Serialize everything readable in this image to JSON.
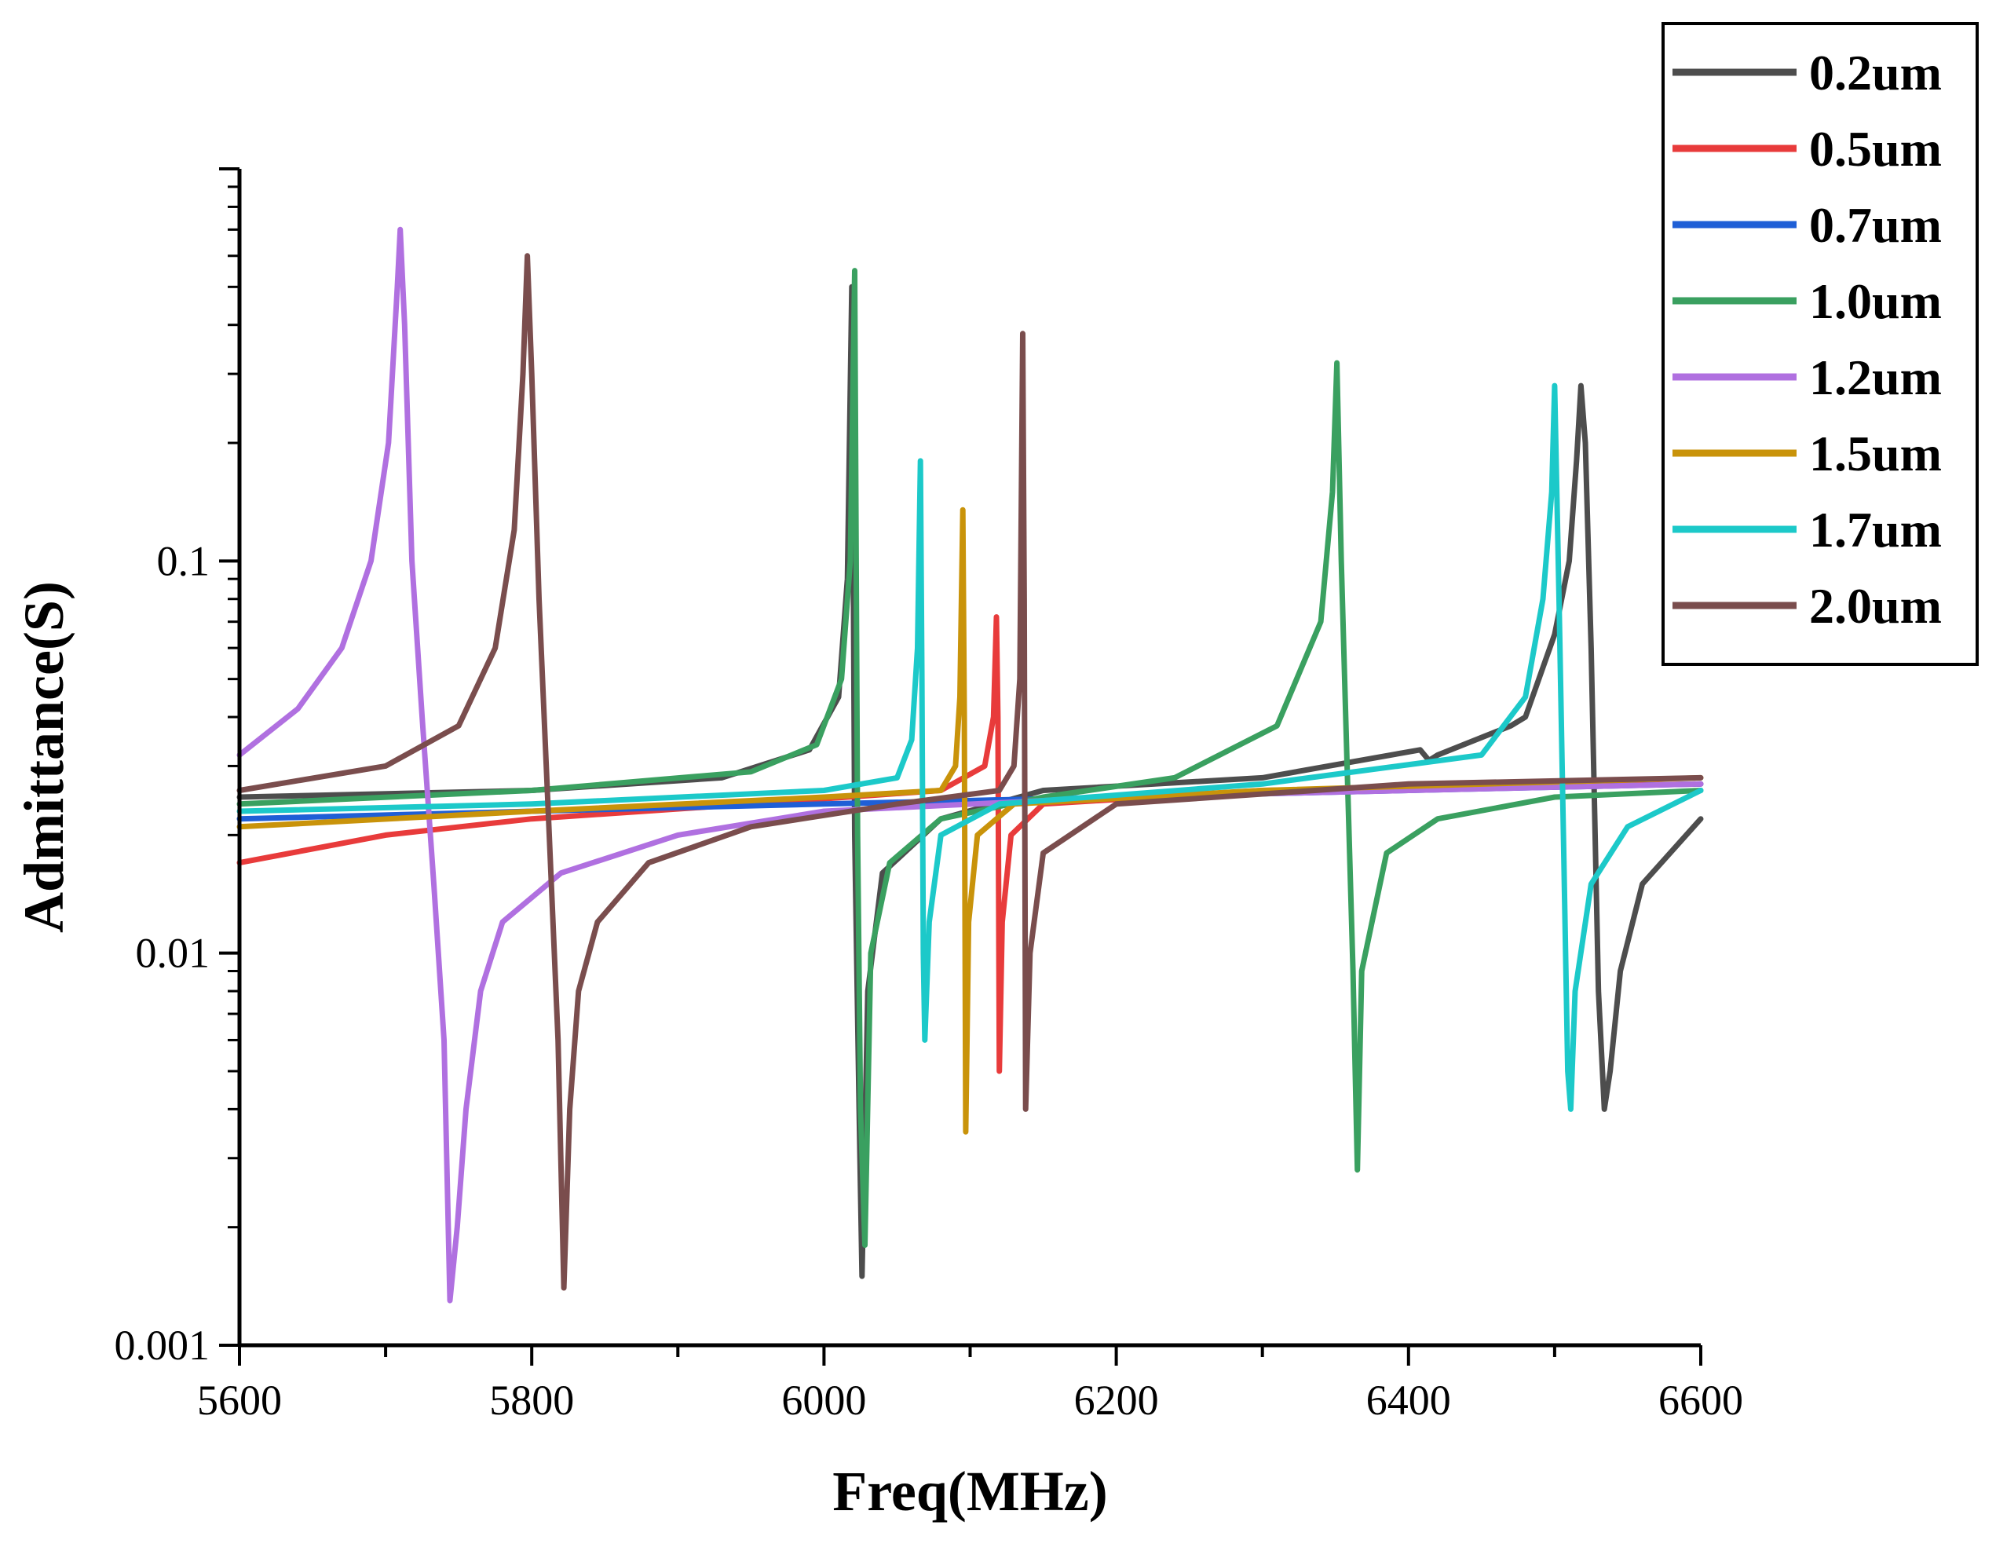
{
  "chart_data": {
    "type": "line",
    "title": "",
    "xlabel": "Freq(MHz)",
    "ylabel": "Admittance(S)",
    "xlim": [
      5600,
      6600
    ],
    "ylim": [
      0.001,
      1.0
    ],
    "yscale": "log",
    "x_ticks": [
      5600,
      5800,
      6000,
      6200,
      6400,
      6600
    ],
    "x_tick_labels": [
      "5600",
      "5800",
      "6000",
      "6200",
      "6400",
      "6600"
    ],
    "y_ticks": [
      0.001,
      0.01,
      0.1
    ],
    "y_tick_labels": [
      "0.001",
      "0.01",
      "0.1"
    ],
    "legend_position": "top-right",
    "series": [
      {
        "name": "0.2um",
        "color": "#4d4d4d",
        "points": [
          [
            5600,
            0.025
          ],
          [
            5800,
            0.026
          ],
          [
            5930,
            0.028
          ],
          [
            5990,
            0.033
          ],
          [
            6010,
            0.045
          ],
          [
            6016,
            0.09
          ],
          [
            6019,
            0.5
          ],
          [
            6021,
            0.02
          ],
          [
            6024,
            0.004
          ],
          [
            6026,
            0.0015
          ],
          [
            6030,
            0.008
          ],
          [
            6040,
            0.016
          ],
          [
            6080,
            0.022
          ],
          [
            6150,
            0.026
          ],
          [
            6300,
            0.028
          ],
          [
            6408,
            0.033
          ],
          [
            6414,
            0.031
          ],
          [
            6420,
            0.032
          ],
          [
            6470,
            0.038
          ],
          [
            6480,
            0.04
          ],
          [
            6500,
            0.065
          ],
          [
            6510,
            0.1
          ],
          [
            6515,
            0.18
          ],
          [
            6518,
            0.28
          ],
          [
            6521,
            0.2
          ],
          [
            6525,
            0.06
          ],
          [
            6530,
            0.008
          ],
          [
            6534,
            0.004
          ],
          [
            6538,
            0.005
          ],
          [
            6545,
            0.009
          ],
          [
            6560,
            0.015
          ],
          [
            6600,
            0.022
          ]
        ]
      },
      {
        "name": "0.5um",
        "color": "#e83b3b",
        "points": [
          [
            5600,
            0.017
          ],
          [
            5700,
            0.02
          ],
          [
            5800,
            0.022
          ],
          [
            5950,
            0.024
          ],
          [
            6080,
            0.026
          ],
          [
            6110,
            0.03
          ],
          [
            6116,
            0.04
          ],
          [
            6118,
            0.072
          ],
          [
            6119,
            0.04
          ],
          [
            6120,
            0.005
          ],
          [
            6122,
            0.012
          ],
          [
            6128,
            0.02
          ],
          [
            6150,
            0.024
          ],
          [
            6300,
            0.026
          ],
          [
            6600,
            0.027
          ]
        ]
      },
      {
        "name": "0.7um",
        "color": "#1f5fd6",
        "points": [
          [
            5600,
            0.022
          ],
          [
            5800,
            0.023
          ],
          [
            6000,
            0.024
          ],
          [
            6200,
            0.025
          ],
          [
            6400,
            0.026
          ],
          [
            6600,
            0.027
          ]
        ]
      },
      {
        "name": "1.0um",
        "color": "#3aa060",
        "points": [
          [
            5600,
            0.024
          ],
          [
            5800,
            0.026
          ],
          [
            5950,
            0.029
          ],
          [
            5995,
            0.034
          ],
          [
            6012,
            0.05
          ],
          [
            6018,
            0.1
          ],
          [
            6021,
            0.55
          ],
          [
            6023,
            0.02
          ],
          [
            6025,
            0.004
          ],
          [
            6028,
            0.0018
          ],
          [
            6032,
            0.01
          ],
          [
            6045,
            0.017
          ],
          [
            6080,
            0.022
          ],
          [
            6150,
            0.025
          ],
          [
            6240,
            0.028
          ],
          [
            6310,
            0.038
          ],
          [
            6340,
            0.07
          ],
          [
            6348,
            0.15
          ],
          [
            6351,
            0.32
          ],
          [
            6354,
            0.1
          ],
          [
            6358,
            0.03
          ],
          [
            6362,
            0.009
          ],
          [
            6365,
            0.0028
          ],
          [
            6368,
            0.009
          ],
          [
            6375,
            0.012
          ],
          [
            6385,
            0.018
          ],
          [
            6420,
            0.022
          ],
          [
            6500,
            0.025
          ],
          [
            6600,
            0.026
          ]
        ]
      },
      {
        "name": "1.2um",
        "color": "#b070e0",
        "points": [
          [
            5600,
            0.032
          ],
          [
            5640,
            0.042
          ],
          [
            5670,
            0.06
          ],
          [
            5690,
            0.1
          ],
          [
            5702,
            0.2
          ],
          [
            5708,
            0.5
          ],
          [
            5710,
            0.7
          ],
          [
            5713,
            0.4
          ],
          [
            5718,
            0.1
          ],
          [
            5725,
            0.04
          ],
          [
            5733,
            0.015
          ],
          [
            5740,
            0.006
          ],
          [
            5744,
            0.0013
          ],
          [
            5749,
            0.002
          ],
          [
            5755,
            0.004
          ],
          [
            5765,
            0.008
          ],
          [
            5780,
            0.012
          ],
          [
            5820,
            0.016
          ],
          [
            5900,
            0.02
          ],
          [
            6000,
            0.023
          ],
          [
            6200,
            0.025
          ],
          [
            6400,
            0.026
          ],
          [
            6600,
            0.027
          ]
        ]
      },
      {
        "name": "1.5um",
        "color": "#c9930a",
        "points": [
          [
            5600,
            0.021
          ],
          [
            5800,
            0.023
          ],
          [
            6000,
            0.025
          ],
          [
            6080,
            0.026
          ],
          [
            6090,
            0.03
          ],
          [
            6093,
            0.045
          ],
          [
            6095,
            0.135
          ],
          [
            6096,
            0.04
          ],
          [
            6097,
            0.0035
          ],
          [
            6099,
            0.012
          ],
          [
            6105,
            0.02
          ],
          [
            6130,
            0.024
          ],
          [
            6300,
            0.026
          ],
          [
            6600,
            0.028
          ]
        ]
      },
      {
        "name": "1.7um",
        "color": "#1cc9c9",
        "points": [
          [
            5600,
            0.023
          ],
          [
            5800,
            0.024
          ],
          [
            6000,
            0.026
          ],
          [
            6050,
            0.028
          ],
          [
            6060,
            0.035
          ],
          [
            6064,
            0.06
          ],
          [
            6066,
            0.18
          ],
          [
            6067,
            0.05
          ],
          [
            6068,
            0.01
          ],
          [
            6069,
            0.006
          ],
          [
            6072,
            0.012
          ],
          [
            6080,
            0.02
          ],
          [
            6120,
            0.024
          ],
          [
            6300,
            0.027
          ],
          [
            6450,
            0.032
          ],
          [
            6480,
            0.045
          ],
          [
            6492,
            0.08
          ],
          [
            6498,
            0.15
          ],
          [
            6500,
            0.28
          ],
          [
            6503,
            0.08
          ],
          [
            6506,
            0.02
          ],
          [
            6509,
            0.005
          ],
          [
            6511,
            0.004
          ],
          [
            6514,
            0.008
          ],
          [
            6525,
            0.015
          ],
          [
            6550,
            0.021
          ],
          [
            6600,
            0.026
          ]
        ]
      },
      {
        "name": "2.0um",
        "color": "#7a4d4d",
        "points": [
          [
            5600,
            0.026
          ],
          [
            5700,
            0.03
          ],
          [
            5750,
            0.038
          ],
          [
            5775,
            0.06
          ],
          [
            5788,
            0.12
          ],
          [
            5794,
            0.3
          ],
          [
            5797,
            0.6
          ],
          [
            5800,
            0.3
          ],
          [
            5805,
            0.08
          ],
          [
            5812,
            0.02
          ],
          [
            5818,
            0.006
          ],
          [
            5822,
            0.0014
          ],
          [
            5826,
            0.004
          ],
          [
            5832,
            0.008
          ],
          [
            5845,
            0.012
          ],
          [
            5880,
            0.017
          ],
          [
            5950,
            0.021
          ],
          [
            6050,
            0.024
          ],
          [
            6120,
            0.026
          ],
          [
            6130,
            0.03
          ],
          [
            6134,
            0.05
          ],
          [
            6136,
            0.38
          ],
          [
            6137,
            0.08
          ],
          [
            6138,
            0.004
          ],
          [
            6141,
            0.01
          ],
          [
            6150,
            0.018
          ],
          [
            6200,
            0.024
          ],
          [
            6400,
            0.027
          ],
          [
            6600,
            0.028
          ]
        ]
      }
    ]
  }
}
